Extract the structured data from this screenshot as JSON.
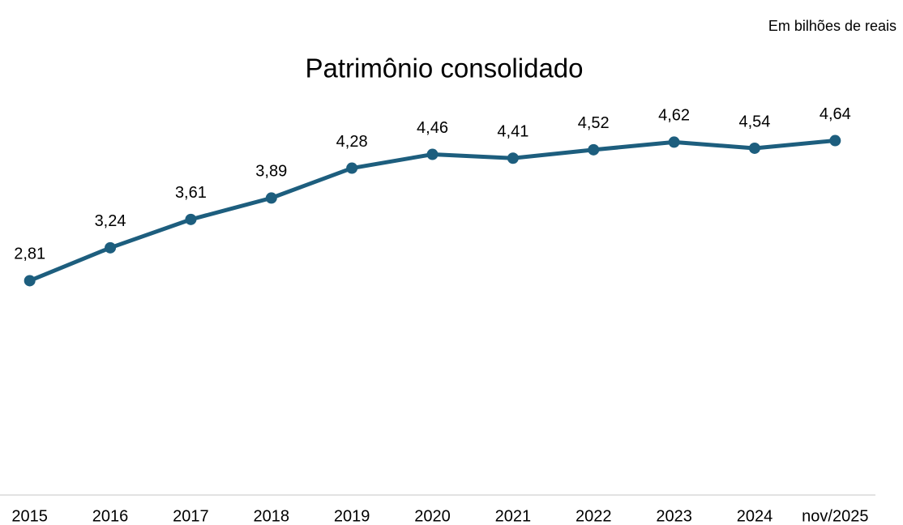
{
  "chart_data": {
    "type": "line",
    "title": "Patrimônio consolidado",
    "subtitle": "Em bilhões de reais",
    "categories": [
      "2015",
      "2016",
      "2017",
      "2018",
      "2019",
      "2020",
      "2021",
      "2022",
      "2023",
      "2024",
      "nov/2025"
    ],
    "series": [
      {
        "name": "Patrimônio consolidado",
        "color": "#1d5e7e",
        "values": [
          2.81,
          3.24,
          3.61,
          3.89,
          4.28,
          4.46,
          4.41,
          4.52,
          4.62,
          4.54,
          4.64
        ],
        "value_labels": [
          "2,81",
          "3,24",
          "3,61",
          "3,89",
          "4,28",
          "4,46",
          "4,41",
          "4,52",
          "4,62",
          "4,54",
          "4,64"
        ]
      }
    ],
    "ylim": [
      0,
      5
    ]
  }
}
